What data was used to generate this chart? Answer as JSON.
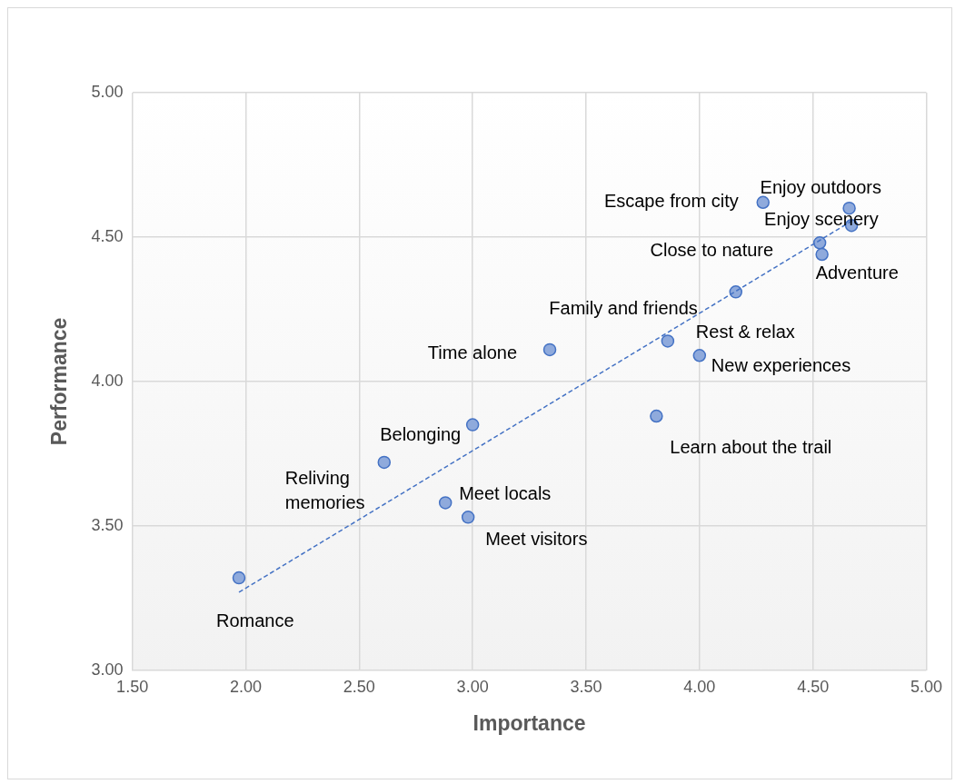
{
  "chart_data": {
    "type": "scatter",
    "xlabel": "Importance",
    "ylabel": "Performance",
    "xlim": [
      1.5,
      5
    ],
    "xticks": [
      {
        "value": 1.5,
        "label": "1.50"
      },
      {
        "value": 2,
        "label": "2.00"
      },
      {
        "value": 2.5,
        "label": "2.50"
      },
      {
        "value": 3,
        "label": "3.00"
      },
      {
        "value": 3.5,
        "label": "3.50"
      },
      {
        "value": 4,
        "label": "4.00"
      },
      {
        "value": 4.5,
        "label": "4.50"
      },
      {
        "value": 5,
        "label": "5.00"
      }
    ],
    "ylim": [
      3,
      5
    ],
    "yticks": [
      {
        "value": 3,
        "label": "3.00"
      },
      {
        "value": 3.5,
        "label": "3.50"
      },
      {
        "value": 4,
        "label": "4.00"
      },
      {
        "value": 4.5,
        "label": "4.50"
      },
      {
        "value": 5,
        "label": "5.00"
      }
    ],
    "grid": true,
    "legend": false,
    "marker": "circle",
    "series": [
      {
        "type": "scatter",
        "color": "#4472c4",
        "x": [
          4.28,
          4.66,
          4.67,
          4.53,
          4.54,
          4.16,
          3.86,
          4.0,
          3.34,
          3.0,
          2.61,
          2.88,
          2.98,
          1.97,
          3.81
        ],
        "values": [
          4.62,
          4.6,
          4.54,
          4.48,
          4.44,
          4.31,
          4.14,
          4.09,
          4.11,
          3.85,
          3.72,
          3.58,
          3.53,
          3.32,
          3.88
        ]
      },
      {
        "type": "line",
        "color": "#4472c4",
        "line_style": "dashed",
        "marker": "none",
        "x": [
          1.97,
          4.68
        ],
        "values": [
          3.27,
          4.56
        ]
      }
    ],
    "annotations": [
      {
        "text": "Escape from city",
        "x": 4.28,
        "y": 4.62
      },
      {
        "text": "Enjoy outdoors",
        "x": 4.66,
        "y": 4.6
      },
      {
        "text": "Enjoy scenery",
        "x": 4.67,
        "y": 4.54
      },
      {
        "text": "Close to nature",
        "x": 4.53,
        "y": 4.48
      },
      {
        "text": "Adventure",
        "x": 4.54,
        "y": 4.44
      },
      {
        "text": "Family and friends",
        "x": 4.16,
        "y": 4.31
      },
      {
        "text": "Rest & relax",
        "x": 3.86,
        "y": 4.14
      },
      {
        "text": "New experiences",
        "x": 4.0,
        "y": 4.09
      },
      {
        "text": "Time alone",
        "x": 3.34,
        "y": 4.11
      },
      {
        "text": "Belonging",
        "x": 3.0,
        "y": 3.85
      },
      {
        "text": "Reliving memories",
        "x": 2.61,
        "y": 3.72
      },
      {
        "text": "Meet locals",
        "x": 2.88,
        "y": 3.58
      },
      {
        "text": "Meet visitors",
        "x": 2.98,
        "y": 3.53
      },
      {
        "text": "Romance",
        "x": 1.97,
        "y": 3.32
      },
      {
        "text": "Learn about the trail",
        "x": 3.81,
        "y": 3.88
      }
    ]
  }
}
